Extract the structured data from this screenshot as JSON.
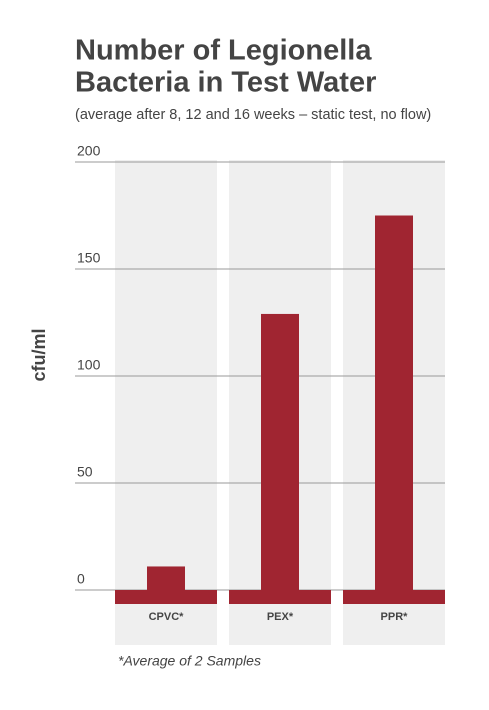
{
  "chart_data": {
    "type": "bar",
    "title": [
      "Number of Legionella",
      "Bacteria in Test Water"
    ],
    "subtitle": "(average after 8, 12 and 16 weeks – static test, no flow)",
    "y_label": "cfu/ml",
    "categories": [
      "CPVC*",
      "PEX*",
      "PPR*"
    ],
    "values": [
      11,
      129,
      175
    ],
    "color": "#a02531",
    "ylim": [
      0,
      200
    ],
    "yticks": [
      0,
      50,
      100,
      150,
      200
    ],
    "grid": true,
    "footnote": "*Average of 2 Samples"
  }
}
